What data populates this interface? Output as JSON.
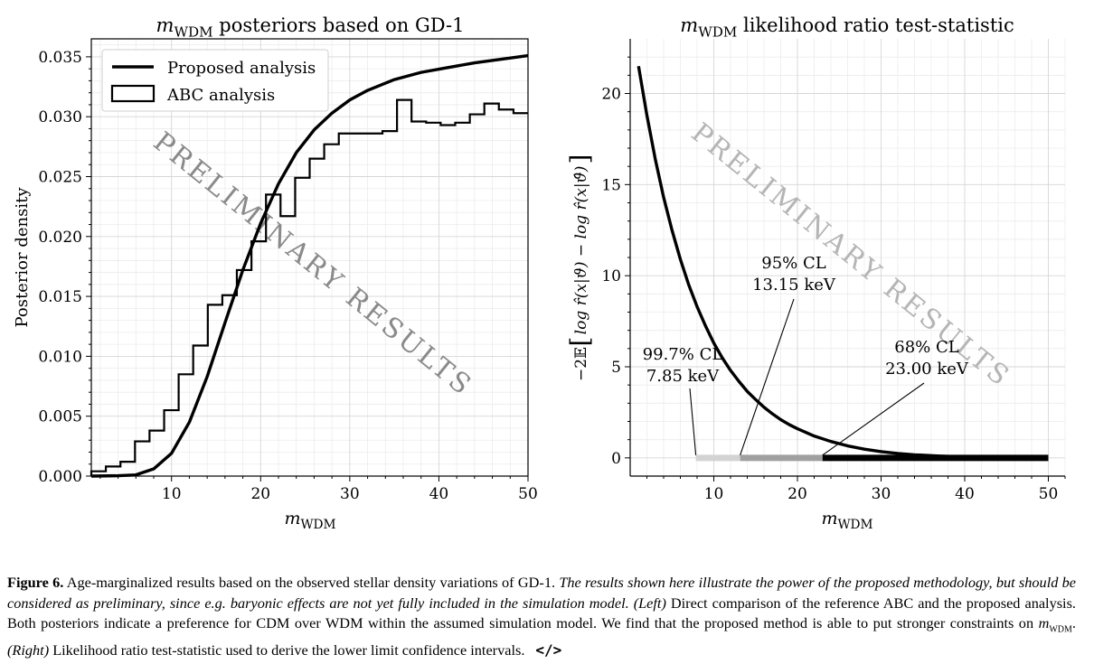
{
  "chart_data": [
    {
      "type": "line",
      "title": "m_WDM posteriors based on GD-1",
      "title_parts": {
        "sym": "m",
        "sub": "WDM",
        "rest": " posteriors based on GD-1"
      },
      "xlabel": "m_WDM",
      "xlabel_parts": {
        "sym": "m",
        "sub": "WDM"
      },
      "ylabel": "Posterior density",
      "xlim": [
        1,
        50
      ],
      "ylim": [
        0,
        0.0365
      ],
      "xticks": [
        10,
        20,
        30,
        40,
        50
      ],
      "yticks": [
        "0.000",
        "0.005",
        "0.010",
        "0.015",
        "0.020",
        "0.025",
        "0.030",
        "0.035"
      ],
      "grid": true,
      "legend": "top-left",
      "watermark": "PRELIMINARY RESULTS",
      "series": [
        {
          "name": "Proposed analysis",
          "kind": "line",
          "x": [
            1,
            4,
            6,
            8,
            10,
            12,
            14,
            16,
            18,
            20,
            22,
            24,
            26,
            28,
            30,
            32,
            35,
            38,
            41,
            44,
            47,
            50
          ],
          "y": [
            0.0,
            3e-05,
            0.0001,
            0.0006,
            0.0019,
            0.0045,
            0.0083,
            0.0128,
            0.0172,
            0.0211,
            0.0244,
            0.027,
            0.0289,
            0.0303,
            0.0314,
            0.0322,
            0.0331,
            0.0337,
            0.0341,
            0.0345,
            0.0348,
            0.0351
          ]
        },
        {
          "name": "ABC analysis",
          "kind": "step-histogram",
          "bin_edges": [
            1,
            2.63,
            4.27,
            5.9,
            7.53,
            9.17,
            10.8,
            12.43,
            14.07,
            15.7,
            17.33,
            18.97,
            20.6,
            22.23,
            23.87,
            25.5,
            27.13,
            28.77,
            30.4,
            32.03,
            33.67,
            35.3,
            36.93,
            38.57,
            40.2,
            41.83,
            43.47,
            45.1,
            46.73,
            48.37,
            50
          ],
          "values": [
            0.0004,
            0.0008,
            0.0012,
            0.0029,
            0.0038,
            0.0055,
            0.0085,
            0.0109,
            0.0143,
            0.0151,
            0.0172,
            0.0196,
            0.0235,
            0.0217,
            0.0249,
            0.0265,
            0.0277,
            0.0286,
            0.0286,
            0.0286,
            0.0288,
            0.0314,
            0.0296,
            0.0295,
            0.0293,
            0.0295,
            0.0302,
            0.0311,
            0.0306,
            0.0303
          ]
        }
      ]
    },
    {
      "type": "line",
      "title": "m_WDM likelihood ratio test-statistic",
      "title_parts": {
        "sym": "m",
        "sub": "WDM",
        "rest": " likelihood ratio test-statistic"
      },
      "xlabel": "m_WDM",
      "xlabel_parts": {
        "sym": "m",
        "sub": "WDM"
      },
      "ylabel": "−2E[log r̂(x|ϑ) − log r̂(x|ϑ̂)]",
      "ylabel_parts": {
        "pre": "−2𝔼",
        "body": "log r̂(x|ϑ) − log r̂(x|ϑ̂)"
      },
      "xlim": [
        0,
        52
      ],
      "ylim": [
        -1,
        23
      ],
      "xticks": [
        10,
        20,
        30,
        40,
        50
      ],
      "yticks": [
        0,
        5,
        10,
        15,
        20
      ],
      "grid": true,
      "watermark": "PRELIMINARY RESULTS",
      "series": [
        {
          "name": "test-statistic",
          "kind": "line",
          "x": [
            1,
            2,
            3,
            4,
            5,
            6,
            7,
            8,
            9,
            10,
            11,
            12,
            13,
            14,
            15,
            16,
            17,
            18,
            19,
            20,
            22,
            24,
            26,
            28,
            30,
            32,
            34,
            37,
            40,
            44,
            47,
            50
          ],
          "y": [
            21.5,
            18.8,
            16.4,
            14.3,
            12.5,
            10.9,
            9.5,
            8.3,
            7.25,
            6.3,
            5.5,
            4.8,
            4.2,
            3.65,
            3.2,
            2.78,
            2.42,
            2.1,
            1.83,
            1.6,
            1.2,
            0.9,
            0.66,
            0.48,
            0.34,
            0.24,
            0.17,
            0.1,
            0.05,
            0.02,
            0.01,
            0.0
          ]
        }
      ],
      "confidence_bands": [
        {
          "label": "99.7% CL",
          "value_label": "7.85 keV",
          "from": 7.85,
          "to": 13.15,
          "color": "#d3d3d3"
        },
        {
          "label": "95% CL",
          "value_label": "13.15 keV",
          "from": 13.15,
          "to": 23.0,
          "color": "#a0a0a0"
        },
        {
          "label": "68% CL",
          "value_label": "23.00 keV",
          "from": 23.0,
          "to": 50.0,
          "color": "#000000"
        }
      ]
    }
  ],
  "caption": {
    "figure_label": "Figure 6.",
    "text_1": " Age-marginalized results based on the observed stellar density variations of GD-1. ",
    "italic_1": "The results shown here illustrate the power of the proposed methodology, but should be considered as preliminary, since e.g. baryonic effects are not yet fully included in the simulation model.",
    "italic_left": " (Left)",
    "text_2": " Direct comparison of the reference ABC and the proposed analysis. Both posteriors indicate a preference for CDM over WDM within the assumed simulation model. We find that the proposed method is able to put stronger constraints on ",
    "mass_sym": "m",
    "mass_sub": "WDM",
    "text_3": ". ",
    "italic_right": "(Right)",
    "text_4": " Likelihood ratio test-statistic used to derive the lower limit confidence intervals.",
    "code_icon": "</>"
  }
}
